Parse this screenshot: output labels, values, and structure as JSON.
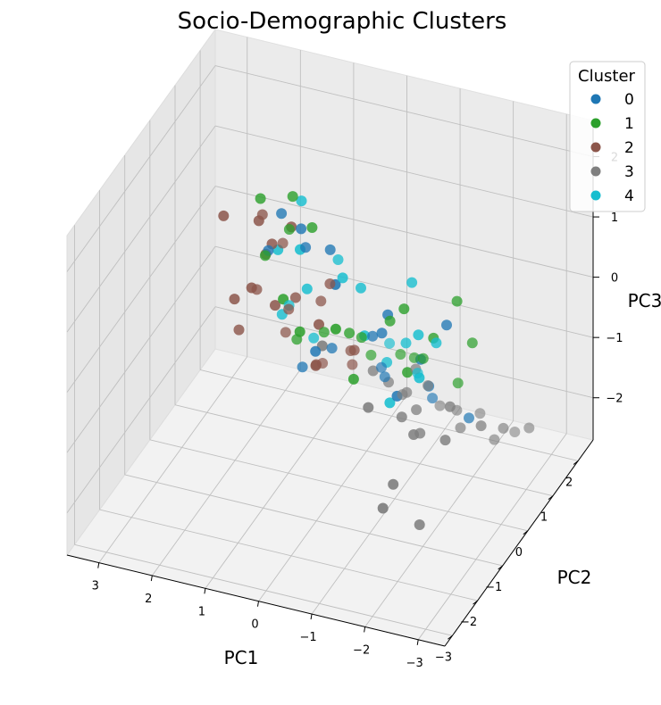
{
  "chart_data": {
    "type": "scatter3d",
    "title": "Socio-Demographic Clusters",
    "xlabel": "PC1",
    "ylabel": "PC2",
    "zlabel": "PC3",
    "x_ticks": [
      "3",
      "2",
      "1",
      "0",
      "−1",
      "−2",
      "−3"
    ],
    "y_ticks": [
      "−3",
      "−2",
      "−1",
      "0",
      "1",
      "2"
    ],
    "z_ticks": [
      "−2",
      "−1",
      "0",
      "1",
      "2"
    ],
    "xlim": [
      -3.5,
      3.6
    ],
    "ylim": [
      -3.3,
      2.6
    ],
    "zlim": [
      -2.7,
      2.6
    ],
    "grid": true,
    "legend": {
      "title": "Cluster",
      "position": "top-right",
      "entries": [
        "0",
        "1",
        "2",
        "3",
        "4"
      ]
    },
    "colors": {
      "0": "#1f77b4",
      "1": "#2ca02c",
      "2": "#8c564b",
      "3": "#7f7f7f",
      "4": "#17becf"
    },
    "series": [
      {
        "name": "0",
        "points": [
          [
            -1.2,
            -0.7,
            0.8
          ],
          [
            0.4,
            0.4,
            0.9
          ],
          [
            -2.1,
            -1.3,
            0.6
          ],
          [
            -0.5,
            -1.3,
            1.5
          ],
          [
            0.9,
            0.3,
            1.2
          ],
          [
            -1.8,
            -1.6,
            0.1
          ],
          [
            -0.3,
            0.6,
            -0.5
          ],
          [
            1.1,
            0.9,
            0.5
          ],
          [
            -2.4,
            -0.9,
            1.0
          ],
          [
            -0.9,
            -0.3,
            0.2
          ],
          [
            0.3,
            -0.4,
            -0.3
          ],
          [
            1.6,
            1.0,
            0.9
          ],
          [
            -1.5,
            0.3,
            -0.9
          ],
          [
            0.7,
            1.1,
            -1.2
          ],
          [
            -0.2,
            1.3,
            -1.6
          ],
          [
            1.3,
            1.2,
            -1.7
          ],
          [
            -2.3,
            0.2,
            -1.2
          ],
          [
            0.1,
            1.8,
            -1.8
          ],
          [
            -1.0,
            1.5,
            -1.9
          ],
          [
            1.8,
            0.9,
            0.3
          ]
        ]
      },
      {
        "name": "1",
        "points": [
          [
            -1.6,
            -0.9,
            1.1
          ],
          [
            0.6,
            0.1,
            1.4
          ],
          [
            -2.2,
            -1.0,
            0.8
          ],
          [
            -0.6,
            -1.5,
            0.9
          ],
          [
            1.2,
            0.6,
            1.5
          ],
          [
            -1.9,
            -1.4,
            0.4
          ],
          [
            -0.1,
            0.1,
            -0.2
          ],
          [
            1.5,
            1.1,
            0.6
          ],
          [
            -2.5,
            -0.7,
            1.3
          ],
          [
            -1.1,
            -0.4,
            0.5
          ],
          [
            0.5,
            -0.6,
            0.1
          ],
          [
            1.9,
            0.8,
            1.2
          ],
          [
            -1.3,
            0.5,
            -0.6
          ],
          [
            0.8,
            1.0,
            -0.9
          ],
          [
            -0.4,
            1.5,
            -1.3
          ],
          [
            1.5,
            1.4,
            -1.4
          ],
          [
            -2.0,
            0.4,
            -0.8
          ],
          [
            0.2,
            1.6,
            -1.5
          ],
          [
            -0.8,
            1.2,
            -1.1
          ],
          [
            2.0,
            1.2,
            0.0
          ],
          [
            -0.7,
            -1.0,
            -0.2
          ],
          [
            1.0,
            -0.2,
            0.3
          ],
          [
            -2.6,
            -0.3,
            0.4
          ],
          [
            0.0,
            0.8,
            -0.7
          ]
        ]
      },
      {
        "name": "2",
        "points": [
          [
            1.8,
            0.8,
            0.3
          ],
          [
            2.1,
            1.3,
            0.6
          ],
          [
            1.4,
            0.2,
            0.9
          ],
          [
            2.2,
            0.4,
            -0.3
          ],
          [
            1.7,
            1.5,
            -1.0
          ],
          [
            0.8,
            -0.3,
            1.6
          ],
          [
            1.0,
            1.3,
            -0.6
          ],
          [
            2.4,
            1.0,
            -1.2
          ],
          [
            0.5,
            0.6,
            0.2
          ],
          [
            1.2,
            -0.1,
            0.1
          ],
          [
            1.9,
            1.8,
            -1.6
          ],
          [
            0.9,
            0.9,
            -1.4
          ],
          [
            2.5,
            0.6,
            0.9
          ],
          [
            0.2,
            -0.6,
            -0.4
          ],
          [
            1.5,
            -0.4,
            0.5
          ],
          [
            -0.1,
            0.3,
            -0.6
          ],
          [
            2.0,
            1.9,
            -0.2
          ],
          [
            1.3,
            2.0,
            -2.1
          ],
          [
            0.6,
            1.7,
            -1.8
          ],
          [
            2.3,
            1.5,
            -0.8
          ],
          [
            1.1,
            0.5,
            -0.1
          ],
          [
            0.3,
            1.0,
            -1.1
          ],
          [
            1.6,
            0.1,
            1.3
          ],
          [
            0.0,
            -0.9,
            0.5
          ]
        ]
      },
      {
        "name": "3",
        "points": [
          [
            -2.8,
            -1.8,
            -0.3
          ],
          [
            -3.0,
            -0.8,
            -0.6
          ],
          [
            -2.6,
            -2.4,
            -1.4
          ],
          [
            -2.2,
            -2.6,
            -0.7
          ],
          [
            -2.9,
            0.3,
            -1.3
          ],
          [
            -2.4,
            1.0,
            -2.0
          ],
          [
            -3.1,
            0.9,
            -1.6
          ],
          [
            -1.8,
            1.7,
            -2.1
          ],
          [
            -1.5,
            -0.2,
            -1.0
          ],
          [
            -2.0,
            0.5,
            -1.6
          ],
          [
            -1.2,
            0.9,
            -1.3
          ],
          [
            -2.7,
            -1.4,
            0.0
          ],
          [
            -1.4,
            -1.9,
            0.0
          ],
          [
            -2.3,
            -2.0,
            -0.2
          ],
          [
            -0.8,
            0.9,
            -1.5
          ],
          [
            -1.6,
            1.2,
            -1.8
          ],
          [
            -0.5,
            0.2,
            -0.8
          ],
          [
            -1.9,
            -0.9,
            -0.9
          ],
          [
            -0.2,
            2.0,
            -2.3
          ],
          [
            -1.0,
            1.8,
            -2.2
          ],
          [
            -2.5,
            1.6,
            -2.2
          ],
          [
            -1.7,
            -1.2,
            -0.5
          ],
          [
            -0.3,
            -1.4,
            0.5
          ],
          [
            -2.1,
            -2.8,
            -1.0
          ],
          [
            -0.6,
            0.6,
            -1.2
          ],
          [
            -1.3,
            0.2,
            -0.6
          ]
        ]
      },
      {
        "name": "4",
        "points": [
          [
            -2.2,
            -1.6,
            1.2
          ],
          [
            -1.0,
            -1.2,
            0.7
          ],
          [
            -2.5,
            -2.2,
            0.9
          ],
          [
            -0.4,
            -0.8,
            1.3
          ],
          [
            0.8,
            0.1,
            1.8
          ],
          [
            0.6,
            -0.1,
            0.5
          ],
          [
            1.1,
            -0.2,
            1.1
          ],
          [
            -1.7,
            -0.8,
            1.5
          ],
          [
            -1.9,
            -2.1,
            0.3
          ],
          [
            0.3,
            0.5,
            0.7
          ],
          [
            -0.9,
            -0.1,
            -0.4
          ],
          [
            0.9,
            0.8,
            -0.9
          ],
          [
            -1.4,
            -0.4,
            0.2
          ],
          [
            -0.1,
            1.7,
            -1.3
          ],
          [
            1.4,
            0.6,
            -0.5
          ],
          [
            -2.3,
            -1.1,
            0.8
          ],
          [
            -0.6,
            -0.5,
            1.0
          ],
          [
            0.4,
            -0.8,
            1.6
          ],
          [
            -1.1,
            0.7,
            -1.0
          ],
          [
            1.6,
            1.3,
            -0.8
          ]
        ]
      }
    ]
  }
}
